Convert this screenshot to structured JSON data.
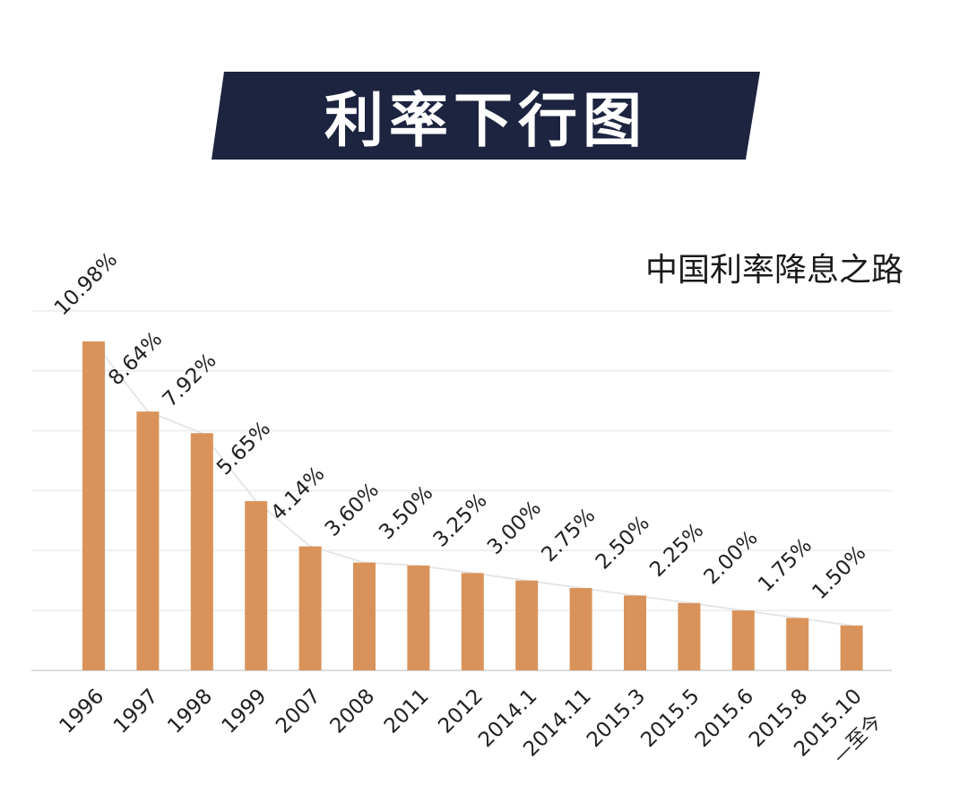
{
  "banner": {
    "title": "利率下行图"
  },
  "chart_data": {
    "type": "bar",
    "title": "利率下行图",
    "subtitle": "中国利率降息之路",
    "xlabel": "",
    "ylabel": "",
    "ylim": [
      0,
      14
    ],
    "grid": true,
    "categories": [
      "1996",
      "1997",
      "1998",
      "1999",
      "2007",
      "2008",
      "2011",
      "2012",
      "2014.1",
      "2014.11",
      "2015.3",
      "2015.5",
      "2015.6",
      "2015.8",
      "2015.10"
    ],
    "last_category_suffix": "—至今",
    "values": [
      10.98,
      8.64,
      7.92,
      5.65,
      4.14,
      3.6,
      3.5,
      3.25,
      3.0,
      2.75,
      2.5,
      2.25,
      2.0,
      1.75,
      1.5
    ],
    "value_labels": [
      "10.98%",
      "8.64%",
      "7.92%",
      "5.65%",
      "4.14%",
      "3.60%",
      "3.50%",
      "3.25%",
      "3.00%",
      "2.75%",
      "2.50%",
      "2.25%",
      "2.00%",
      "1.75%",
      "1.50%"
    ],
    "colors": {
      "bar": "#d9935a",
      "banner": "#1c2440"
    }
  }
}
